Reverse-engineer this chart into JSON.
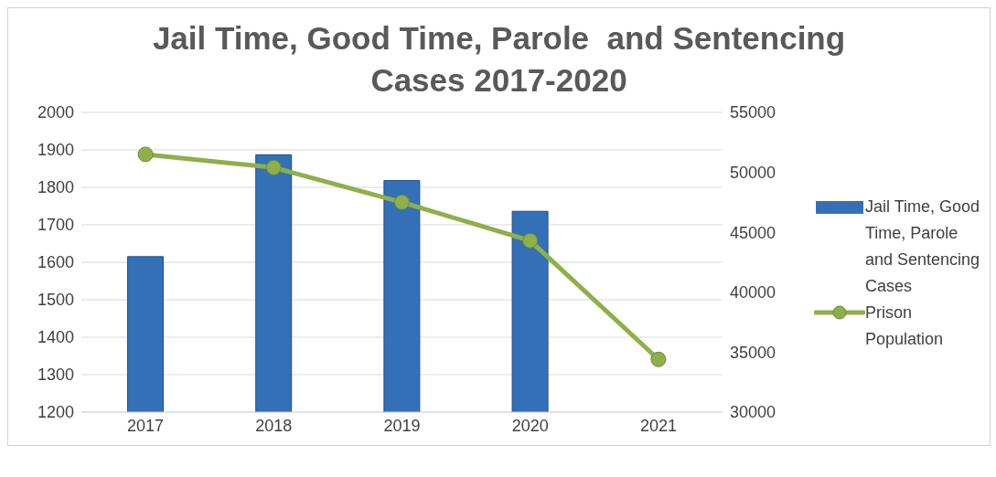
{
  "chart_data": {
    "type": "bar",
    "title": "Jail Time, Good Time, Parole  and Sentencing Cases 2017-2020",
    "categories": [
      "2017",
      "2018",
      "2019",
      "2020",
      "2021"
    ],
    "series": [
      {
        "name": "Jail Time, Good Time, Parole and Sentencing Cases",
        "color": "#3470b8",
        "values": [
          1615,
          1887,
          1818,
          1736,
          null
        ]
      },
      {
        "name": "Prison Population",
        "type": "line",
        "axis": "y2",
        "color": "#8db04a",
        "values": [
          51500,
          50400,
          47500,
          44300,
          34400
        ]
      }
    ],
    "ylim": [
      1200,
      2000
    ],
    "yticks": [
      1200,
      1300,
      1400,
      1500,
      1600,
      1700,
      1800,
      1900,
      2000
    ],
    "y2lim": [
      30000,
      55000
    ],
    "y2ticks": [
      30000,
      35000,
      40000,
      45000,
      50000,
      55000
    ],
    "grid": "y",
    "legend": "right",
    "marker": "circle",
    "line_style": "solid"
  }
}
